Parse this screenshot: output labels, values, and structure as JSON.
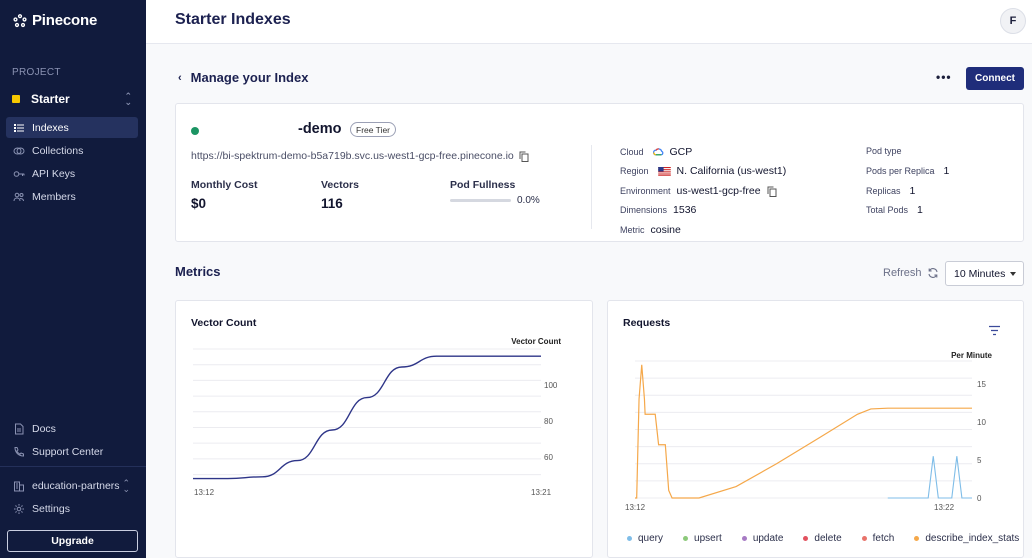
{
  "brand": "Pinecone",
  "sidebar": {
    "project_label": "PROJECT",
    "project_name": "Starter",
    "nav": [
      {
        "label": "Indexes",
        "icon": "list-icon"
      },
      {
        "label": "Collections",
        "icon": "collections-icon"
      },
      {
        "label": "API Keys",
        "icon": "key-icon"
      },
      {
        "label": "Members",
        "icon": "members-icon"
      }
    ],
    "bottom": [
      {
        "label": "Docs",
        "icon": "doc-icon"
      },
      {
        "label": "Support Center",
        "icon": "phone-icon"
      }
    ],
    "org": "education-partners",
    "settings": "Settings",
    "upgrade": "Upgrade"
  },
  "header": {
    "title": "Starter Indexes",
    "avatar": "F"
  },
  "manage": {
    "title": "Manage your Index",
    "more": "•••",
    "connect": "Connect"
  },
  "index": {
    "name": "-demo",
    "tier": "Free Tier",
    "url": "https://bi-spektrum-demo-b5a719b.svc.us-west1-gcp-free.pinecone.io",
    "status_color": "#1b9463",
    "monthly_cost_label": "Monthly Cost",
    "monthly_cost": "$0",
    "vectors_label": "Vectors",
    "vectors": "116",
    "pod_fullness_label": "Pod Fullness",
    "pod_fullness": "0.0%",
    "pod_fullness_fraction": 0.0,
    "cloud_label": "Cloud",
    "cloud": "GCP",
    "region_label": "Region",
    "region": "N. California (us-west1)",
    "environment_label": "Environment",
    "environment": "us-west1-gcp-free",
    "dimensions_label": "Dimensions",
    "dimensions": "1536",
    "metric_label": "Metric",
    "metric": "cosine",
    "pod_type_label": "Pod type",
    "pod_type": "",
    "pods_per_replica_label": "Pods per Replica",
    "pods_per_replica": "1",
    "replicas_label": "Replicas",
    "replicas": "1",
    "total_pods_label": "Total Pods",
    "total_pods": "1"
  },
  "metrics": {
    "title": "Metrics",
    "refresh": "Refresh",
    "range": "10 Minutes"
  },
  "chart_data": [
    {
      "type": "line",
      "title": "Vector Count",
      "series": [
        {
          "name": "Vector Count",
          "color": "#2e3588",
          "x": [
            "13:12",
            "13:13",
            "13:14",
            "13:15",
            "13:16",
            "13:17",
            "13:18",
            "13:19",
            "13:20",
            "13:21",
            "13:21"
          ],
          "values": [
            48,
            48,
            49,
            58,
            75,
            93,
            110,
            116,
            116,
            116,
            116
          ]
        }
      ],
      "x_ticks": [
        "13:12",
        "13:21"
      ],
      "y_ticks": [
        60,
        80,
        100
      ],
      "ylim": [
        45,
        120
      ]
    },
    {
      "type": "line",
      "title": "Requests",
      "ylabel": "Per Minute",
      "x_ticks": [
        "13:12",
        "13:22"
      ],
      "y_ticks": [
        0,
        5,
        10,
        15
      ],
      "ylim": [
        0,
        18
      ],
      "series": [
        {
          "name": "query",
          "color": "#7fbde8"
        },
        {
          "name": "upsert",
          "color": "#8cc97a"
        },
        {
          "name": "update",
          "color": "#a77bc4"
        },
        {
          "name": "delete",
          "color": "#e2525f"
        },
        {
          "name": "fetch",
          "color": "#e8736b"
        },
        {
          "name": "describe_index_stats",
          "color": "#f5a84a"
        }
      ]
    }
  ]
}
